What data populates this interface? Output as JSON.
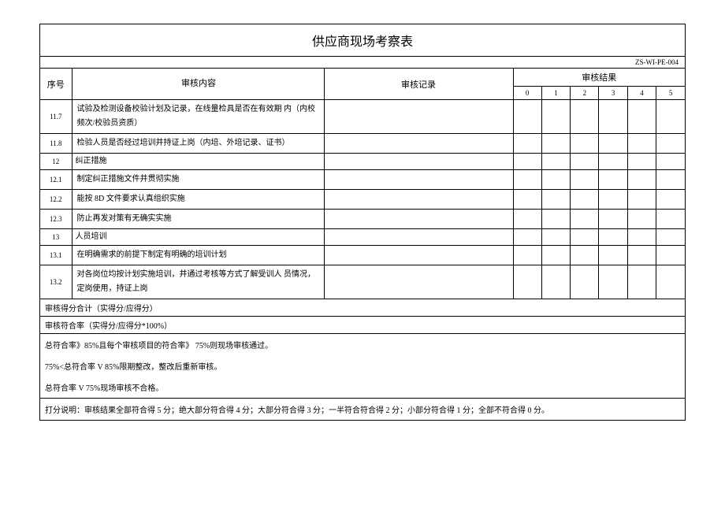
{
  "title": "供应商现场考察表",
  "doc_code": "ZS-WI-PE-004",
  "headers": {
    "seq": "序号",
    "content": "审核内容",
    "record": "审核记录",
    "result": "审核结果",
    "scores": [
      "0",
      "1",
      "2",
      "3",
      "4",
      "5"
    ]
  },
  "rows": [
    {
      "seq": "11.7",
      "content": "试验及检测设备校验计划及记录，在线量检具是否在有效期 内（内校频次/校验员资质）"
    },
    {
      "seq": "11.8",
      "content": "检验人员是否经过培训并持证上岗（内培、外培记录、证书）"
    },
    {
      "seq": "12",
      "content": "纠正措施"
    },
    {
      "seq": "12.1",
      "content": "制定纠正措施文件并贯彻实施"
    },
    {
      "seq": "12.2",
      "content": "能按 8D 文件要求认真组织实施"
    },
    {
      "seq": "12.3",
      "content": "防止再发对策有无确实实施"
    },
    {
      "seq": "13",
      "content": "人员培训"
    },
    {
      "seq": "13.1",
      "content": "在明确需求的前提下制定有明确的培训计划"
    },
    {
      "seq": "13.2",
      "content": "对各岗位均按计划实施培训，并通过考核等方式了解受训人 员情况，定岗使用，持证上岗"
    }
  ],
  "footer": {
    "line1": "审核得分合计（实得分/应得分）",
    "line2": "审核符合率（实得分/应得分*100%）",
    "line3": "总符合率》85%且每个审核项目的符合率》 75%则现场审核通过。",
    "line4": "75%<总符合率 V 85%限期整改，整改后重新审核。",
    "line5": "总符合率 V 75%现场审核不合格。",
    "line6": "打分说明：审核结果全部符合得   5 分；绝大部分符合得 4 分；大部分符合得 3 分；一半符合符合得 2 分；小部分符合得 1 分；全部不符合得 0 分。"
  }
}
